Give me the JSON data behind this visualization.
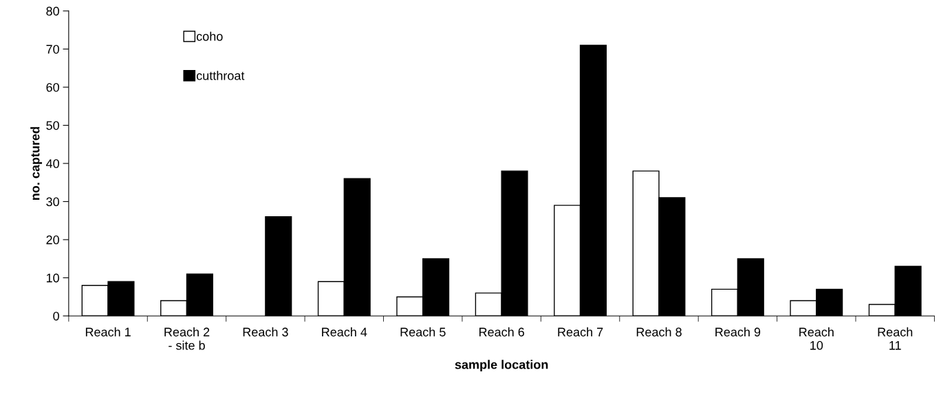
{
  "chart_data": {
    "type": "bar",
    "xlabel": "sample location",
    "ylabel": "no. captured",
    "categories": [
      "Reach 1",
      "Reach 2\n- site b",
      "Reach 3",
      "Reach 4",
      "Reach 5",
      "Reach 6",
      "Reach 7",
      "Reach 8",
      "Reach 9",
      "Reach\n10",
      "Reach\n11"
    ],
    "series": [
      {
        "name": "coho",
        "color": "#ffffff",
        "values": [
          8,
          4,
          null,
          9,
          5,
          6,
          29,
          38,
          7,
          4,
          3
        ]
      },
      {
        "name": "cutthroat",
        "color": "#000000",
        "values": [
          9,
          11,
          26,
          36,
          15,
          38,
          71,
          31,
          15,
          7,
          13
        ]
      }
    ],
    "ylim": [
      0,
      80
    ],
    "yticks": [
      0,
      10,
      20,
      30,
      40,
      50,
      60,
      70,
      80
    ],
    "grid": false,
    "legend": "top left"
  }
}
